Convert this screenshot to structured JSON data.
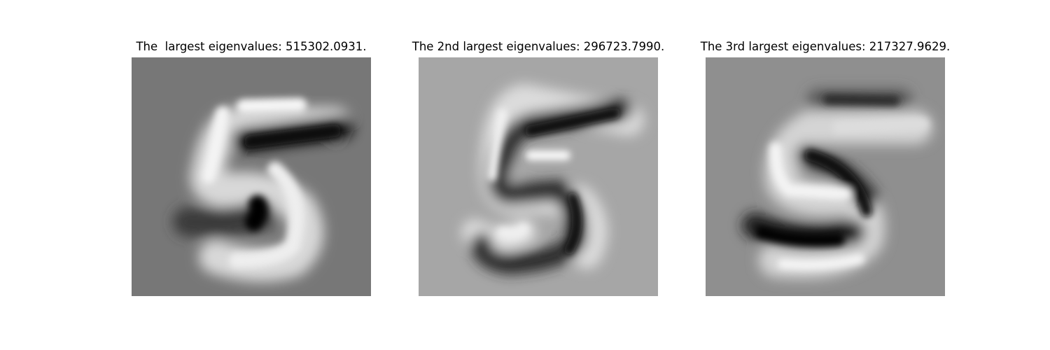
{
  "figure": {
    "panels": [
      {
        "title": "The  largest eigenvalues: 515302.0931.",
        "image": "eigendigit-five-1",
        "background": "#777777"
      },
      {
        "title": "The 2nd largest eigenvalues: 296723.7990.",
        "image": "eigendigit-five-2",
        "background": "#a6a6a6"
      },
      {
        "title": "The 3rd largest eigenvalues: 217327.9629.",
        "image": "eigendigit-five-3",
        "background": "#8f8f8f"
      }
    ]
  }
}
